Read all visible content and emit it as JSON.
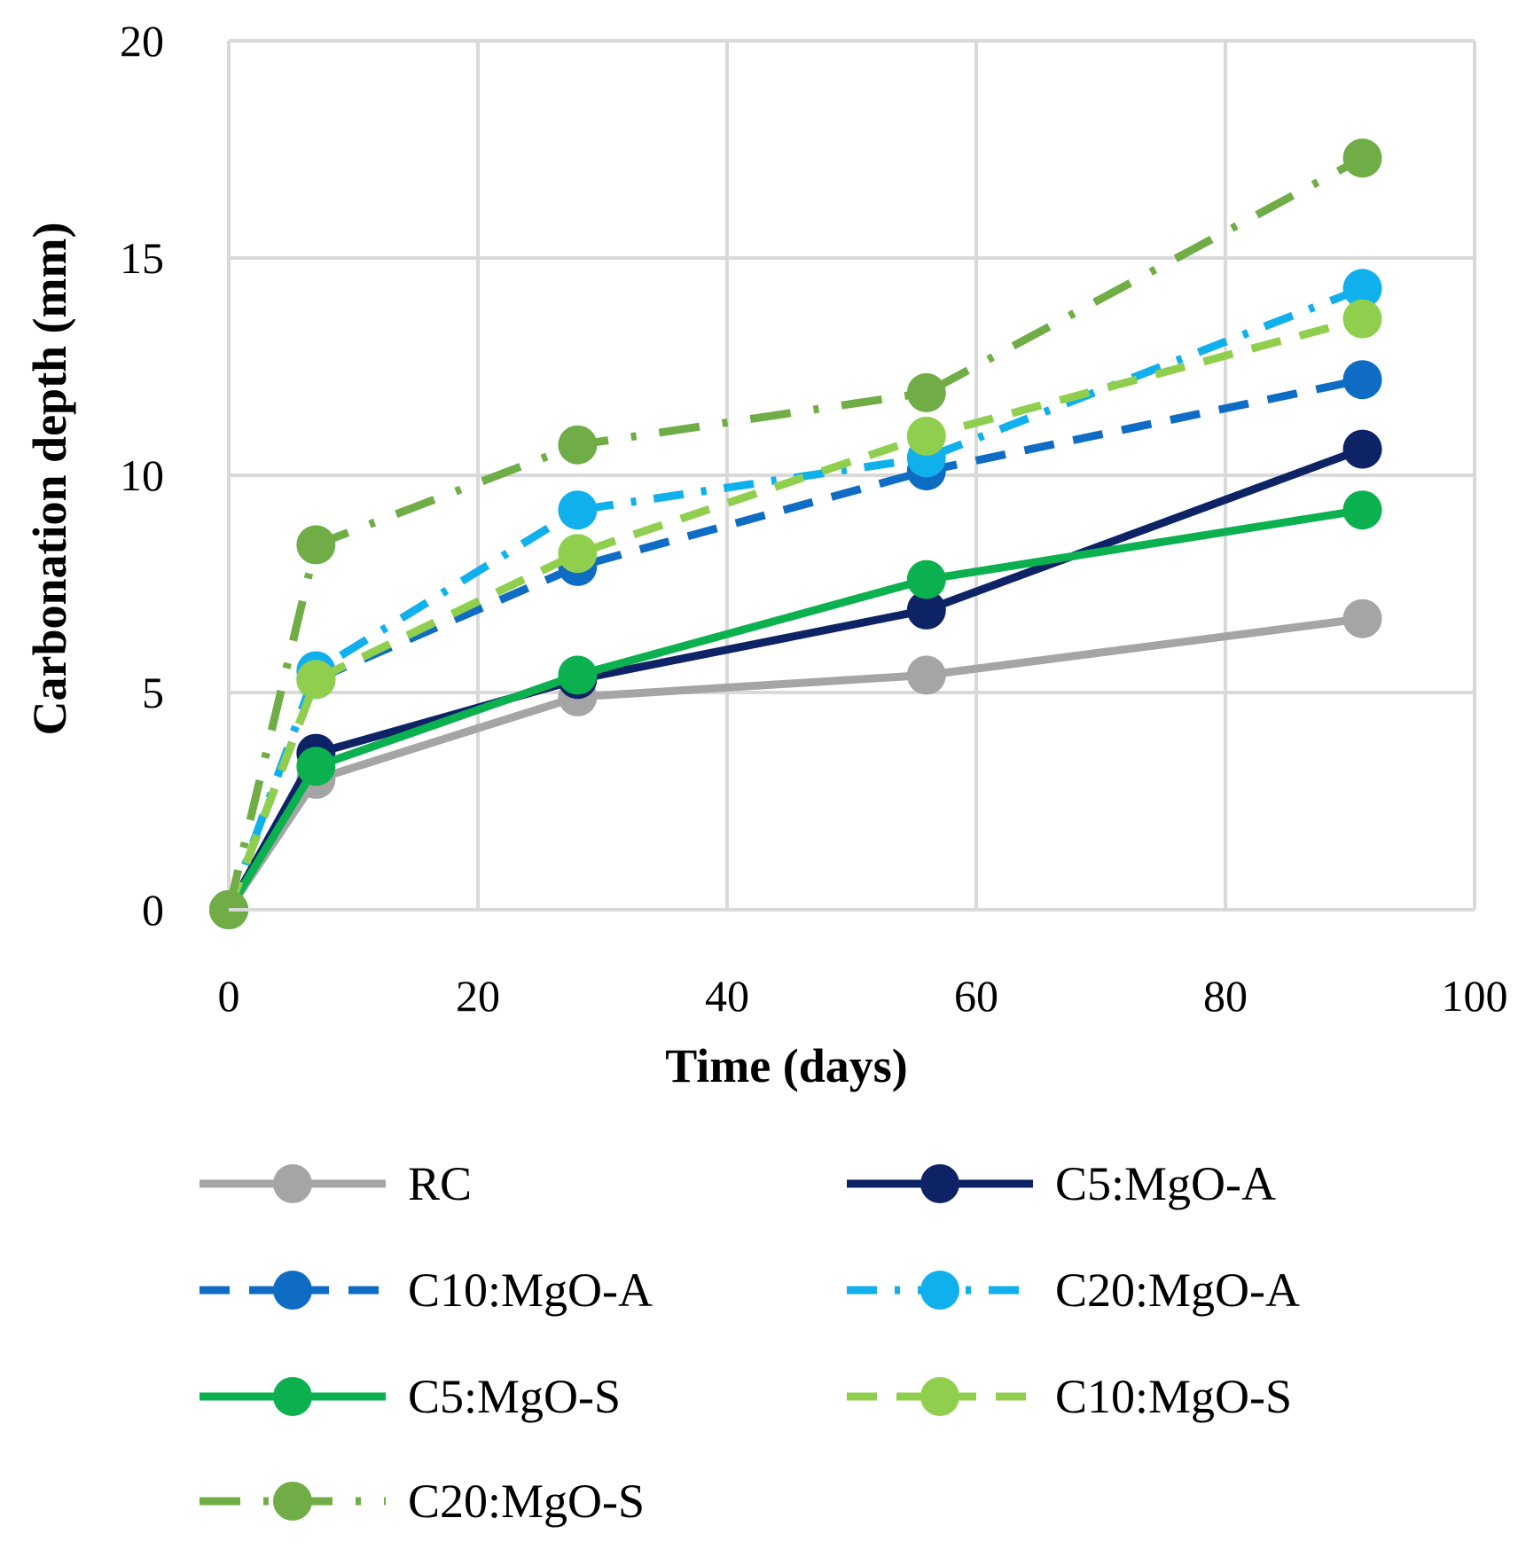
{
  "chart_data": {
    "type": "line",
    "title": "",
    "xlabel": "Time (days)",
    "ylabel": "Carbonation depth (mm)",
    "xlim": [
      0,
      100
    ],
    "ylim": [
      0,
      20
    ],
    "xticks": [
      0,
      20,
      40,
      60,
      80,
      100
    ],
    "yticks": [
      0,
      5,
      10,
      15,
      20
    ],
    "grid": true,
    "legend_position": "bottom",
    "x": [
      0,
      7,
      28,
      56,
      91
    ],
    "series": [
      {
        "name": "RC",
        "values": [
          0,
          3.0,
          4.9,
          5.4,
          6.7
        ],
        "color": "#a5a5a5",
        "dash": "solid"
      },
      {
        "name": "C5:MgO-A",
        "values": [
          0,
          3.6,
          5.3,
          6.9,
          10.6
        ],
        "color": "#0d2366",
        "dash": "solid"
      },
      {
        "name": "C10:MgO-A",
        "values": [
          0,
          5.3,
          7.9,
          10.1,
          12.2
        ],
        "color": "#0f6cc4",
        "dash": "dash"
      },
      {
        "name": "C20:MgO-A",
        "values": [
          0,
          5.5,
          9.2,
          10.4,
          14.3
        ],
        "color": "#10b0ec",
        "dash": "dashdot"
      },
      {
        "name": "C5:MgO-S",
        "values": [
          0,
          3.3,
          5.4,
          7.6,
          9.2
        ],
        "color": "#0bb04f",
        "dash": "solid"
      },
      {
        "name": "C10:MgO-S",
        "values": [
          0,
          5.3,
          8.2,
          10.9,
          13.6
        ],
        "color": "#90cf4e",
        "dash": "dash"
      },
      {
        "name": "C20:MgO-S",
        "values": [
          0,
          8.4,
          10.7,
          11.9,
          17.3
        ],
        "color": "#70ad46",
        "dash": "dashdotlong"
      }
    ]
  }
}
